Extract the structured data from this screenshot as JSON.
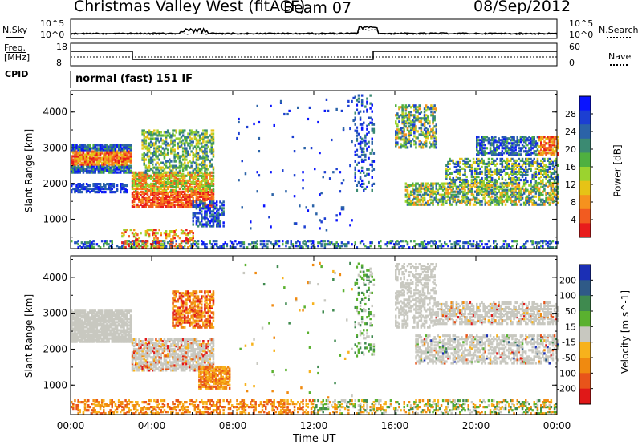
{
  "header": {
    "station": "Christmas Valley West (fitACF)",
    "beam": "Beam 07",
    "date": "08/Sep/2012"
  },
  "noise_panel": {
    "left_label": "N.Sky",
    "right_label": "N.Search",
    "left_ticks": [
      "10^5",
      "10^0"
    ],
    "right_ticks": [
      "10^5",
      "10^0"
    ]
  },
  "freq_panel": {
    "left_label_line1": "Freq.",
    "left_label_line2": "[MHz]",
    "right_label": "Nave",
    "left_ticks": [
      "18",
      "8"
    ],
    "right_ticks": [
      "60",
      "0"
    ]
  },
  "cpid_panel": {
    "label": "CPID",
    "text": "normal (fast) 151 IF"
  },
  "x_axis": {
    "label": "Time UT",
    "ticks": [
      "00:00",
      "04:00",
      "08:00",
      "12:00",
      "16:00",
      "20:00",
      "00:00"
    ]
  },
  "chart_data": [
    {
      "type": "heatmap",
      "name": "power",
      "ylabel": "Slant Range [km]",
      "yticks": [
        1000,
        2000,
        3000,
        4000
      ],
      "ylim": [
        180,
        4600
      ],
      "xlim": [
        0,
        24
      ],
      "colorbar": {
        "label": "Power [dB]",
        "ticks": [
          "4",
          "8",
          "12",
          "16",
          "20",
          "24",
          "28"
        ],
        "colors": [
          "#0a14ff",
          "#1c3fd2",
          "#2b63a8",
          "#3b8a72",
          "#4fb040",
          "#9bd32f",
          "#e6c316",
          "#f6921e",
          "#f25b20",
          "#e81c1c"
        ]
      }
    },
    {
      "type": "heatmap",
      "name": "velocity",
      "ylabel": "Slant Range [km]",
      "yticks": [
        1000,
        2000,
        3000,
        4000
      ],
      "ylim": [
        180,
        4600
      ],
      "xlim": [
        0,
        24
      ],
      "colorbar": {
        "label": "Velocity [m s^-1]",
        "ticks": [
          "200",
          "100",
          "50",
          "15",
          "-15",
          "-50",
          "-100",
          "-200"
        ],
        "colors": [
          "#1b2fb5",
          "#2f5a87",
          "#3f8a4f",
          "#5ab12f",
          "#c8c8c0",
          "#f7b21c",
          "#f08a10",
          "#e8541a",
          "#e01818"
        ]
      }
    }
  ]
}
